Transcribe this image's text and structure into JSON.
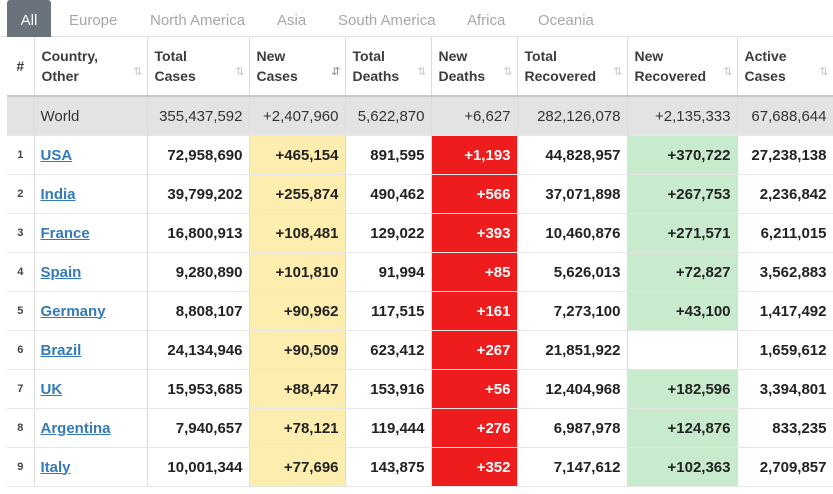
{
  "tabs": [
    {
      "label": "All"
    },
    {
      "label": "Europe"
    },
    {
      "label": "North America"
    },
    {
      "label": "Asia"
    },
    {
      "label": "South America"
    },
    {
      "label": "Africa"
    },
    {
      "label": "Oceania"
    }
  ],
  "columns": {
    "index": "#",
    "country": "Country,\nOther",
    "total_cases": "Total\nCases",
    "new_cases": "New\nCases",
    "total_deaths": "Total\nDeaths",
    "new_deaths": "New\nDeaths",
    "total_recovered": "Total\nRecovered",
    "new_recovered": "New\nRecovered",
    "active_cases": "Active\nCases"
  },
  "sort_icons": {
    "default": "⇅",
    "active": "⇵"
  },
  "world": {
    "country": "World",
    "total_cases": "355,437,592",
    "new_cases": "+2,407,960",
    "total_deaths": "5,622,870",
    "new_deaths": "+6,627",
    "total_recovered": "282,126,078",
    "new_recovered": "+2,135,333",
    "active_cases": "67,688,644"
  },
  "rows": [
    {
      "rank": "1",
      "country": "USA",
      "total_cases": "72,958,690",
      "new_cases": "+465,154",
      "total_deaths": "891,595",
      "new_deaths": "+1,193",
      "total_recovered": "44,828,957",
      "new_recovered": "+370,722",
      "active_cases": "27,238,138"
    },
    {
      "rank": "2",
      "country": "India",
      "total_cases": "39,799,202",
      "new_cases": "+255,874",
      "total_deaths": "490,462",
      "new_deaths": "+566",
      "total_recovered": "37,071,898",
      "new_recovered": "+267,753",
      "active_cases": "2,236,842"
    },
    {
      "rank": "3",
      "country": "France",
      "total_cases": "16,800,913",
      "new_cases": "+108,481",
      "total_deaths": "129,022",
      "new_deaths": "+393",
      "total_recovered": "10,460,876",
      "new_recovered": "+271,571",
      "active_cases": "6,211,015"
    },
    {
      "rank": "4",
      "country": "Spain",
      "total_cases": "9,280,890",
      "new_cases": "+101,810",
      "total_deaths": "91,994",
      "new_deaths": "+85",
      "total_recovered": "5,626,013",
      "new_recovered": "+72,827",
      "active_cases": "3,562,883"
    },
    {
      "rank": "5",
      "country": "Germany",
      "total_cases": "8,808,107",
      "new_cases": "+90,962",
      "total_deaths": "117,515",
      "new_deaths": "+161",
      "total_recovered": "7,273,100",
      "new_recovered": "+43,100",
      "active_cases": "1,417,492"
    },
    {
      "rank": "6",
      "country": "Brazil",
      "total_cases": "24,134,946",
      "new_cases": "+90,509",
      "total_deaths": "623,412",
      "new_deaths": "+267",
      "total_recovered": "21,851,922",
      "new_recovered": "",
      "active_cases": "1,659,612"
    },
    {
      "rank": "7",
      "country": "UK",
      "total_cases": "15,953,685",
      "new_cases": "+88,447",
      "total_deaths": "153,916",
      "new_deaths": "+56",
      "total_recovered": "12,404,968",
      "new_recovered": "+182,596",
      "active_cases": "3,394,801"
    },
    {
      "rank": "8",
      "country": "Argentina",
      "total_cases": "7,940,657",
      "new_cases": "+78,121",
      "total_deaths": "119,444",
      "new_deaths": "+276",
      "total_recovered": "6,987,978",
      "new_recovered": "+124,876",
      "active_cases": "833,235"
    },
    {
      "rank": "9",
      "country": "Italy",
      "total_cases": "10,001,344",
      "new_cases": "+77,696",
      "total_deaths": "143,875",
      "new_deaths": "+352",
      "total_recovered": "7,147,612",
      "new_recovered": "+102,363",
      "active_cases": "2,709,857"
    }
  ],
  "colors": {
    "tab_active_bg": "#6a737b",
    "new_cases_bg": "#fdeeb0",
    "new_deaths_bg": "#ee1c1c",
    "new_recovered_bg": "#c8ebcd",
    "link": "#337ab7",
    "world_row_bg": "#e3e3e3"
  }
}
